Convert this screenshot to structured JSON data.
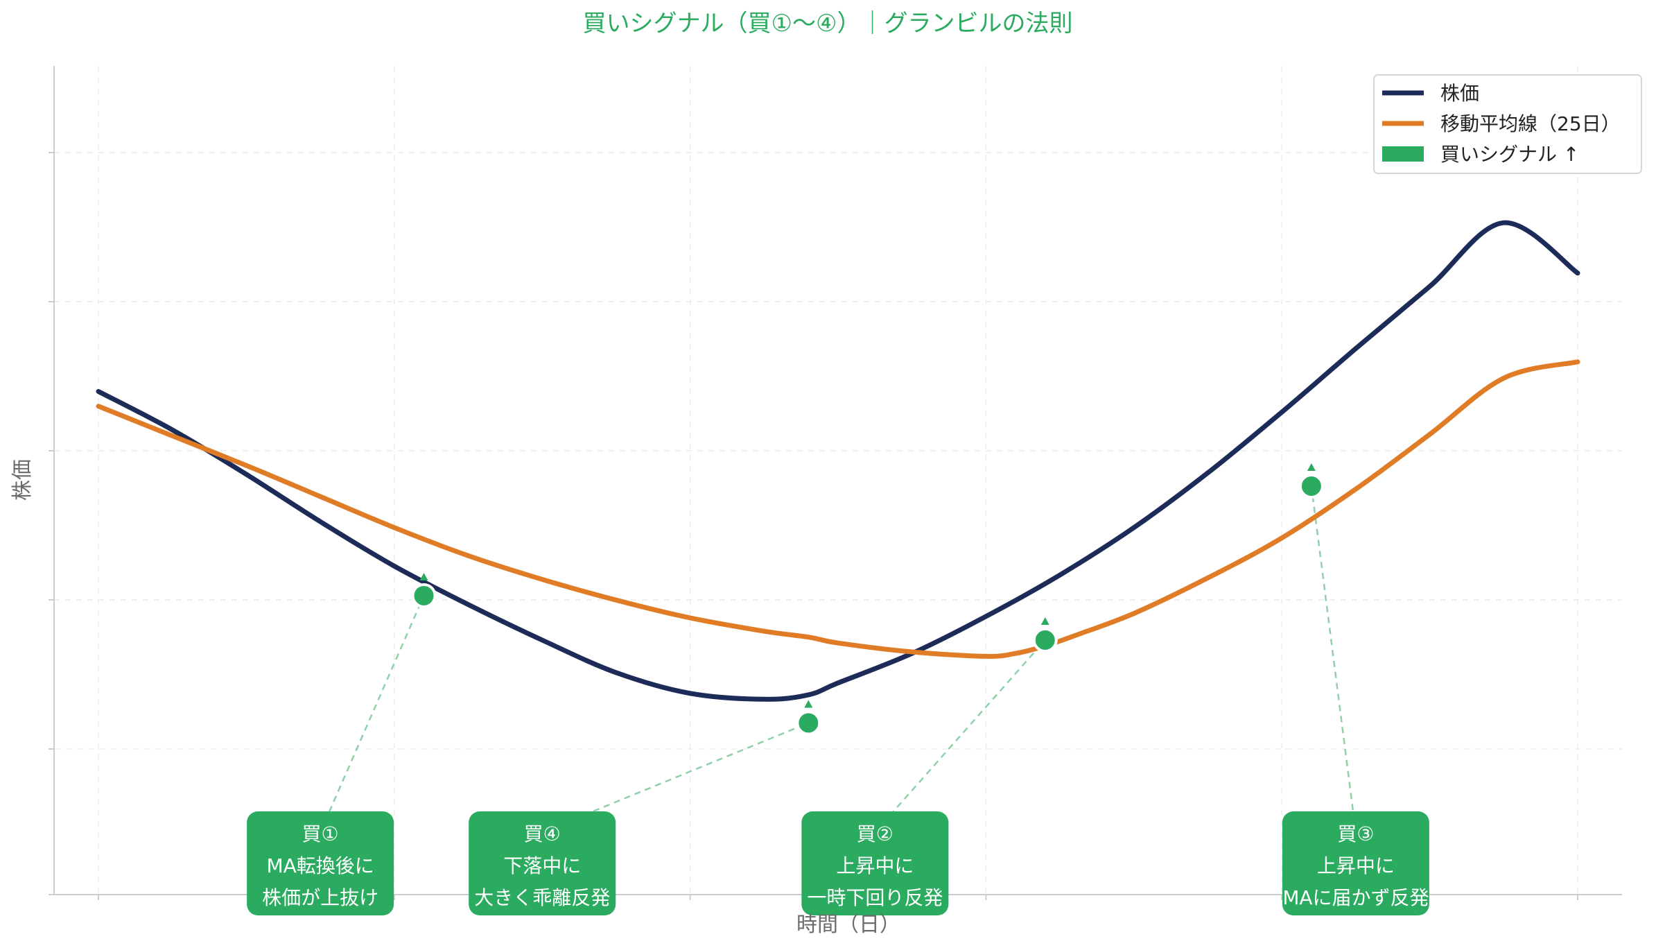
{
  "chart_data": {
    "type": "line",
    "title": "買いシグナル（買①〜④）｜グランビルの法則",
    "xlabel": "時間（日）",
    "ylabel": "株価",
    "xlim": [
      -3,
      103
    ],
    "ylim": [
      38,
      94
    ],
    "grid": true,
    "legend_position": "top-right",
    "legend": [
      {
        "label": "株価",
        "kind": "line",
        "color": "#1c2b57"
      },
      {
        "label": "移動平均線（25日）",
        "kind": "line",
        "color": "#e07b26"
      },
      {
        "label": "買いシグナル ↑",
        "kind": "patch",
        "color": "#2aab60"
      }
    ],
    "series": [
      {
        "name": "株価",
        "color": "#1c2b57",
        "x": [
          0,
          5,
          10,
          15,
          20,
          25,
          30,
          35,
          40,
          45,
          48,
          50,
          55,
          60,
          65,
          70,
          75,
          80,
          85,
          90,
          95,
          100
        ],
        "y": [
          72,
          69.4,
          66.4,
          63.2,
          60.2,
          57.6,
          55.2,
          53.0,
          51.6,
          51.2,
          51.5,
          52.3,
          54.3,
          56.8,
          59.6,
          62.8,
          66.5,
          70.6,
          74.9,
          79.1,
          83.4,
          80.0
        ]
      },
      {
        "name": "移動平均線（25日）",
        "color": "#e07b26",
        "x": [
          0,
          5,
          10,
          15,
          20,
          25,
          30,
          35,
          40,
          45,
          48,
          50,
          55,
          60,
          62,
          64,
          66,
          70,
          75,
          80,
          85,
          90,
          95,
          100
        ],
        "y": [
          71,
          69.0,
          67.0,
          64.9,
          62.8,
          60.9,
          59.3,
          57.9,
          56.7,
          55.8,
          55.4,
          55.0,
          54.4,
          54.1,
          54.3,
          54.8,
          55.5,
          57.0,
          59.4,
          62.1,
          65.4,
          69.1,
          72.9,
          74.0
        ]
      }
    ],
    "signals": [
      {
        "id": "buy1",
        "x": 22,
        "y": 58.2,
        "label": [
          "買①",
          "MA転換後に",
          "株価が上抜け"
        ]
      },
      {
        "id": "buy4",
        "x": 48,
        "y": 49.6,
        "label": [
          "買④",
          "下落中に",
          "大きく乖離反発"
        ]
      },
      {
        "id": "buy2",
        "x": 64,
        "y": 55.2,
        "label": [
          "買②",
          "上昇中に",
          "一時下回り反発"
        ]
      },
      {
        "id": "buy3",
        "x": 82,
        "y": 65.6,
        "label": [
          "買③",
          "上昇中に",
          "MAに届かず反発"
        ]
      }
    ],
    "annotation_x": [
      15,
      30,
      52.5,
      85
    ]
  },
  "colors": {
    "title": "#2aab60",
    "price": "#1c2b57",
    "ma": "#e07b26",
    "signal": "#2aab60",
    "leader": "#8fd0a8",
    "grid": "#ececec",
    "axis": "#cccccc"
  }
}
